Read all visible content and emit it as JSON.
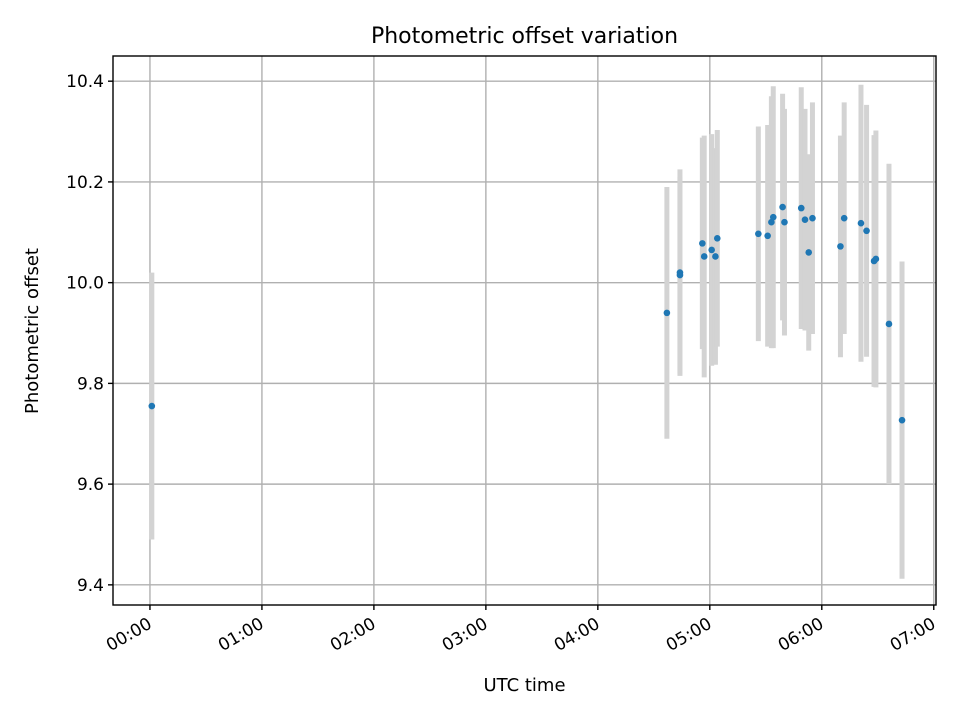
{
  "chart_data": {
    "type": "scatter",
    "title": "Photometric offset variation",
    "xlabel": "UTC time",
    "ylabel": "Photometric offset",
    "x_unit": "hours",
    "xlim": [
      -0.33,
      7.02
    ],
    "ylim": [
      9.36,
      10.45
    ],
    "xticks": [
      {
        "value": 0,
        "label": "00:00"
      },
      {
        "value": 1,
        "label": "01:00"
      },
      {
        "value": 2,
        "label": "02:00"
      },
      {
        "value": 3,
        "label": "03:00"
      },
      {
        "value": 4,
        "label": "04:00"
      },
      {
        "value": 5,
        "label": "05:00"
      },
      {
        "value": 6,
        "label": "06:00"
      },
      {
        "value": 7,
        "label": "07:00"
      }
    ],
    "yticks": [
      {
        "value": 9.4,
        "label": "9.4"
      },
      {
        "value": 9.6,
        "label": "9.6"
      },
      {
        "value": 9.8,
        "label": "9.8"
      },
      {
        "value": 10.0,
        "label": "10.0"
      },
      {
        "value": 10.2,
        "label": "10.2"
      },
      {
        "value": 10.4,
        "label": "10.4"
      }
    ],
    "grid": true,
    "point_color": "#1f77b4",
    "errorbar_color": "#d3d3d3",
    "points": [
      {
        "x": "00:01",
        "y": 9.755,
        "err": 0.265
      },
      {
        "x": "04:37",
        "y": 9.94,
        "err": 0.25
      },
      {
        "x": "04:44",
        "y": 10.02,
        "err": 0.205
      },
      {
        "x": "04:44",
        "y": 10.015,
        "err": 0.195
      },
      {
        "x": "04:56",
        "y": 10.078,
        "err": 0.21
      },
      {
        "x": "04:57",
        "y": 10.052,
        "err": 0.24
      },
      {
        "x": "05:01",
        "y": 10.065,
        "err": 0.23
      },
      {
        "x": "05:03",
        "y": 10.052,
        "err": 0.215
      },
      {
        "x": "05:04",
        "y": 10.088,
        "err": 0.215
      },
      {
        "x": "05:26",
        "y": 10.097,
        "err": 0.213
      },
      {
        "x": "05:31",
        "y": 10.093,
        "err": 0.22
      },
      {
        "x": "05:33",
        "y": 10.12,
        "err": 0.25
      },
      {
        "x": "05:34",
        "y": 10.13,
        "err": 0.26
      },
      {
        "x": "05:39",
        "y": 10.15,
        "err": 0.225
      },
      {
        "x": "05:40",
        "y": 10.12,
        "err": 0.225
      },
      {
        "x": "05:49",
        "y": 10.148,
        "err": 0.24
      },
      {
        "x": "05:51",
        "y": 10.125,
        "err": 0.22
      },
      {
        "x": "05:53",
        "y": 10.06,
        "err": 0.195
      },
      {
        "x": "05:55",
        "y": 10.128,
        "err": 0.23
      },
      {
        "x": "06:10",
        "y": 10.072,
        "err": 0.22
      },
      {
        "x": "06:12",
        "y": 10.128,
        "err": 0.23
      },
      {
        "x": "06:21",
        "y": 10.118,
        "err": 0.275
      },
      {
        "x": "06:24",
        "y": 10.103,
        "err": 0.25
      },
      {
        "x": "06:28",
        "y": 10.043,
        "err": 0.25
      },
      {
        "x": "06:29",
        "y": 10.047,
        "err": 0.255
      },
      {
        "x": "06:36",
        "y": 9.918,
        "err": 0.318
      },
      {
        "x": "06:43",
        "y": 9.727,
        "err": 0.315
      }
    ]
  }
}
